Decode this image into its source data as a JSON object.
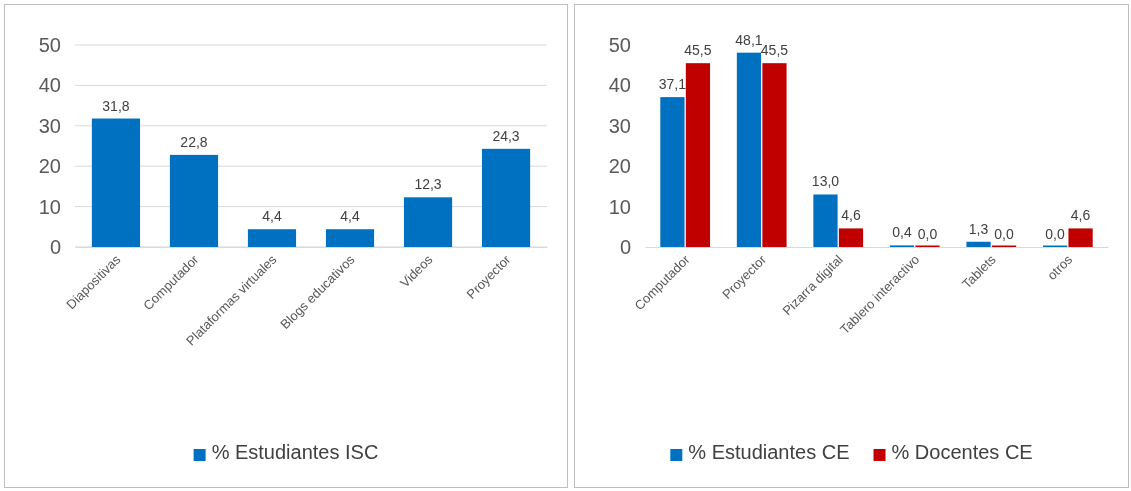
{
  "chart_data": [
    {
      "type": "bar",
      "categories": [
        "Diapositivas",
        "Computador",
        "Plataformas virtuales",
        "Blogs educativos",
        "Videos",
        "Proyector"
      ],
      "ylim": [
        0,
        50
      ],
      "yticks": [
        0,
        10,
        20,
        30,
        40,
        50
      ],
      "grid": "y",
      "legend": "bottom",
      "series": [
        {
          "name": "% Estudiantes ISC",
          "color": "#0070c0",
          "values": [
            31.8,
            22.8,
            4.4,
            4.4,
            12.3,
            24.3
          ],
          "value_labels": [
            "31,8",
            "22,8",
            "4,4",
            "4,4",
            "12,3",
            "24,3"
          ]
        }
      ]
    },
    {
      "type": "bar",
      "categories": [
        "Computador",
        "Proyector",
        "Pizarra digital",
        "Tablero interactivo",
        "Tablets",
        "otros"
      ],
      "ylim": [
        0,
        50
      ],
      "yticks": [
        0,
        10,
        20,
        30,
        40,
        50
      ],
      "grid": false,
      "legend": "bottom",
      "series": [
        {
          "name": "%  Estudiantes CE",
          "color": "#0070c0",
          "values": [
            37.1,
            48.1,
            13.0,
            0.4,
            1.3,
            0.0
          ],
          "value_labels": [
            "37,1",
            "48,1",
            "13,0",
            "0,4",
            "1,3",
            "0,0"
          ]
        },
        {
          "name": "%  Docentes CE",
          "color": "#c00000",
          "values": [
            45.5,
            45.5,
            4.6,
            0.0,
            0.0,
            4.6
          ],
          "value_labels": [
            "45,5",
            "45,5",
            "4,6",
            "0,0",
            "0,0",
            "4,6"
          ]
        }
      ]
    }
  ]
}
